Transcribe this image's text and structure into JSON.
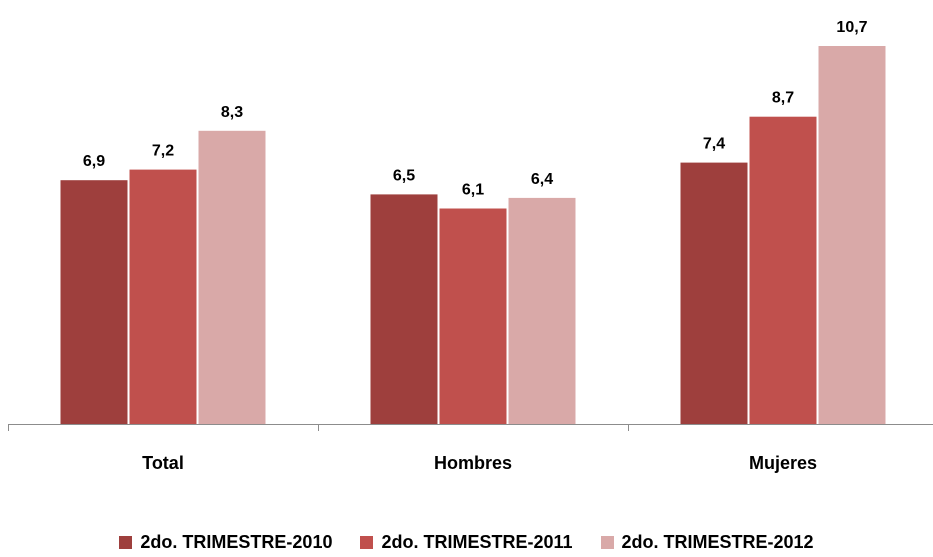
{
  "chart_data": {
    "type": "bar",
    "categories": [
      "Total",
      "Hombres",
      "Mujeres"
    ],
    "series": [
      {
        "name": "2do. TRIMESTRE-2010",
        "values": [
          6.9,
          6.5,
          7.4
        ],
        "labels": [
          "6,9",
          "6,5",
          "7,4"
        ],
        "color": "#9E3F3D"
      },
      {
        "name": "2do. TRIMESTRE-2011",
        "values": [
          7.2,
          6.1,
          8.7
        ],
        "labels": [
          "7,2",
          "6,1",
          "8,7"
        ],
        "color": "#C0504D"
      },
      {
        "name": "2do. TRIMESTRE-2012",
        "values": [
          8.3,
          6.4,
          10.7
        ],
        "labels": [
          "8,3",
          "6,4",
          "10,7"
        ],
        "color": "#D9A9A8"
      }
    ],
    "ylim": [
      0,
      10.7
    ],
    "grid": false,
    "legend_position": "bottom",
    "axis_color": "#8C8C8C"
  }
}
